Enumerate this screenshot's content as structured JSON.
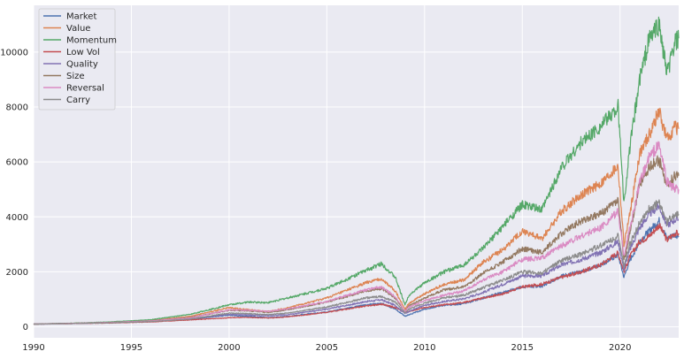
{
  "chart_data": {
    "type": "line",
    "title": "",
    "xlabel": "",
    "ylabel": "",
    "xlim": [
      1990,
      2023
    ],
    "ylim": [
      -400,
      11700
    ],
    "xticks": [
      1990,
      1995,
      2000,
      2005,
      2010,
      2015,
      2020
    ],
    "yticks": [
      0,
      2000,
      4000,
      6000,
      8000,
      10000
    ],
    "grid": true,
    "legend_position": "upper-left",
    "x": [
      1990,
      1992,
      1994,
      1996,
      1998,
      2000,
      2001,
      2002,
      2003,
      2005,
      2007,
      2007.8,
      2008.5,
      2009.0,
      2009.2,
      2010,
      2011,
      2012,
      2013,
      2014,
      2015,
      2016,
      2017,
      2018,
      2019,
      2019.9,
      2020.2,
      2020.5,
      2021,
      2021.5,
      2022,
      2022.4,
      2022.8,
      2023
    ],
    "series": [
      {
        "name": "Market",
        "color": "#4c72b0",
        "values": [
          100,
          120,
          150,
          190,
          280,
          420,
          380,
          330,
          380,
          540,
          800,
          850,
          650,
          380,
          440,
          640,
          780,
          840,
          1050,
          1250,
          1450,
          1480,
          1850,
          2000,
          2250,
          2600,
          1800,
          2400,
          3100,
          3500,
          3850,
          3200,
          3350,
          3300
        ]
      },
      {
        "name": "Value",
        "color": "#dd8452",
        "values": [
          100,
          125,
          165,
          230,
          380,
          700,
          620,
          560,
          690,
          1050,
          1600,
          1750,
          1300,
          650,
          850,
          1200,
          1550,
          1700,
          2350,
          2800,
          3500,
          3200,
          4200,
          4800,
          5200,
          5850,
          3000,
          4100,
          6300,
          7000,
          7850,
          6800,
          7300,
          7200
        ]
      },
      {
        "name": "Momentum",
        "color": "#55a868",
        "values": [
          100,
          130,
          180,
          260,
          450,
          800,
          900,
          880,
          1050,
          1400,
          2050,
          2300,
          1800,
          800,
          1150,
          1600,
          2000,
          2250,
          2850,
          3650,
          4450,
          4250,
          5800,
          6700,
          7300,
          8000,
          4500,
          6500,
          9000,
          10500,
          11000,
          9200,
          10300,
          10500
        ]
      },
      {
        "name": "Low Vol",
        "color": "#c44e52",
        "values": [
          100,
          115,
          140,
          175,
          250,
          330,
          340,
          320,
          360,
          530,
          760,
          820,
          700,
          520,
          560,
          700,
          800,
          880,
          1050,
          1200,
          1450,
          1550,
          1800,
          2000,
          2250,
          2700,
          2000,
          2550,
          3100,
          3300,
          3700,
          3150,
          3400,
          3400
        ]
      },
      {
        "name": "Quality",
        "color": "#8172b3",
        "values": [
          100,
          120,
          155,
          200,
          300,
          450,
          430,
          400,
          440,
          640,
          920,
          980,
          780,
          480,
          560,
          780,
          920,
          1020,
          1250,
          1550,
          1850,
          1850,
          2250,
          2450,
          2700,
          3100,
          2100,
          2800,
          3600,
          4100,
          4400,
          3700,
          3900,
          3900
        ]
      },
      {
        "name": "Size",
        "color": "#937860",
        "values": [
          100,
          125,
          160,
          220,
          340,
          600,
          580,
          520,
          620,
          900,
          1300,
          1400,
          1050,
          560,
          760,
          1050,
          1350,
          1450,
          1950,
          2350,
          2850,
          2700,
          3400,
          3850,
          4100,
          4600,
          2400,
          3400,
          5200,
          5800,
          6100,
          5100,
          5500,
          5500
        ]
      },
      {
        "name": "Reversal",
        "color": "#da8bc3",
        "values": [
          100,
          122,
          160,
          215,
          320,
          620,
          600,
          560,
          650,
          920,
          1350,
          1450,
          1100,
          560,
          720,
          950,
          1150,
          1300,
          1700,
          2000,
          2450,
          2500,
          2950,
          3300,
          3600,
          4200,
          2600,
          3600,
          5200,
          6200,
          6600,
          5300,
          5000,
          5000
        ]
      },
      {
        "name": "Carry",
        "color": "#8c8c8c",
        "values": [
          100,
          118,
          150,
          190,
          280,
          500,
          480,
          440,
          500,
          720,
          1050,
          1100,
          900,
          500,
          640,
          860,
          1050,
          1150,
          1420,
          1700,
          2000,
          1950,
          2400,
          2650,
          2950,
          3300,
          2200,
          3000,
          3800,
          4300,
          4500,
          3800,
          4100,
          4100
        ]
      }
    ]
  }
}
